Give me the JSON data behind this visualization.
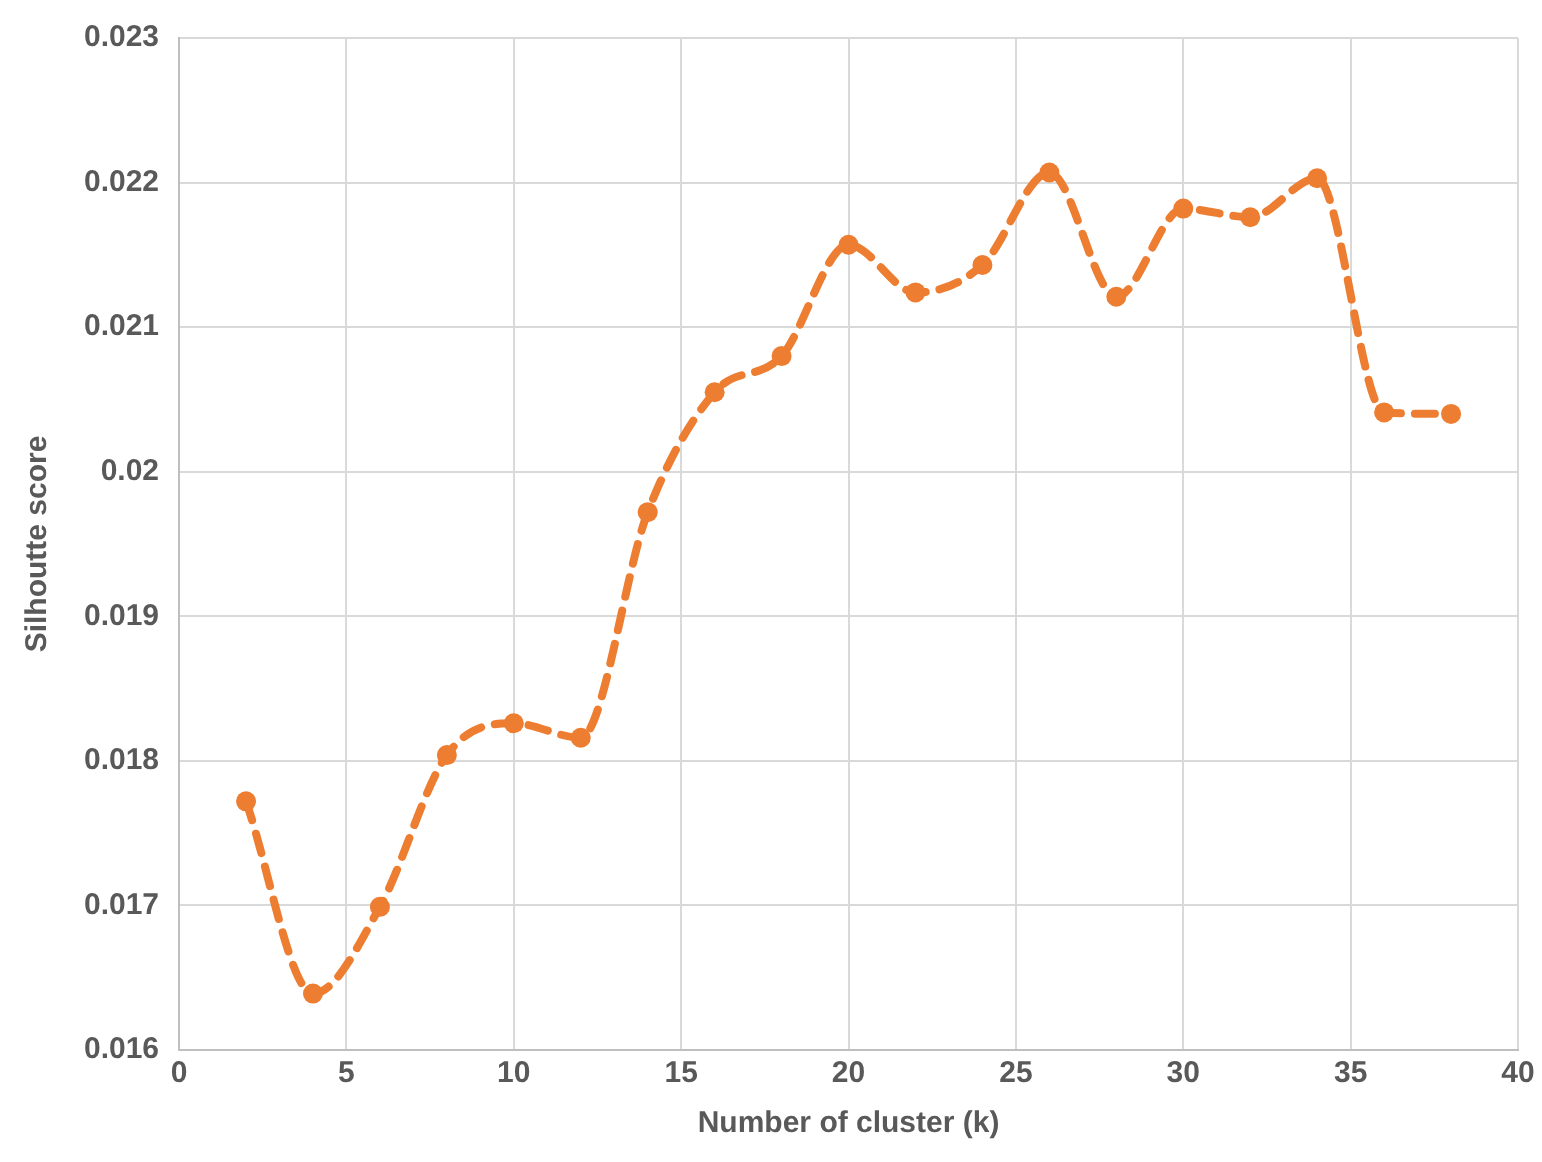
{
  "chart_data": {
    "type": "line",
    "xlabel": "Number of cluster (k)",
    "ylabel": "Silhoutte score",
    "x": [
      2,
      4,
      6,
      8,
      10,
      12,
      14,
      16,
      18,
      20,
      22,
      24,
      26,
      28,
      30,
      32,
      34,
      36,
      38
    ],
    "series": [
      {
        "color": "#ed7d31",
        "values": [
          0.01772,
          0.01639,
          0.01699,
          0.01804,
          0.01826,
          0.01816,
          0.01972,
          0.02055,
          0.0208,
          0.02157,
          0.02124,
          0.02143,
          0.02207,
          0.02121,
          0.02182,
          0.02176,
          0.02203,
          0.02041,
          0.0204
        ]
      }
    ],
    "xlim": [
      0,
      40
    ],
    "xticks": [
      0,
      5,
      10,
      15,
      20,
      25,
      30,
      35,
      40
    ],
    "ylim": [
      0.016,
      0.023
    ],
    "yticks": [
      0.016,
      0.017,
      0.018,
      0.019,
      0.02,
      0.021,
      0.022,
      0.023
    ],
    "grid": true,
    "legend": false,
    "marker": "circle",
    "line_style": "dashed"
  }
}
